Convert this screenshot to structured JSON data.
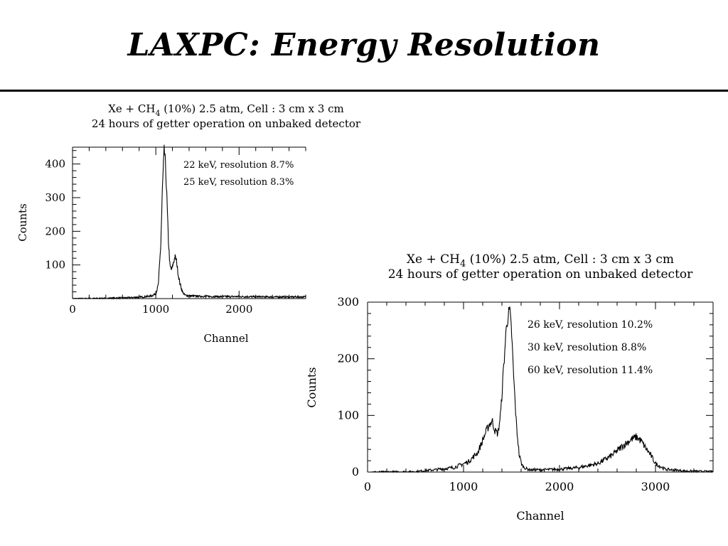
{
  "slide": {
    "title": "LAXPC: Energy  Resolution"
  },
  "chart_data": [
    {
      "type": "line",
      "title_line1": "Xe + CH",
      "title_sub": "4",
      "title_line1_rest": " (10%) 2.5 atm, Cell : 3 cm x 3 cm",
      "title_line2": "24 hours of getter operation on unbaked detector",
      "xlabel": "Channel",
      "ylabel": "Counts",
      "xlim": [
        0,
        2800
      ],
      "ylim": [
        0,
        450
      ],
      "xticks": [
        0,
        1000,
        2000
      ],
      "xtick_labels": [
        "0",
        "1000",
        "2000"
      ],
      "yticks": [
        100,
        200,
        300,
        400
      ],
      "ytick_labels": [
        "100",
        "200",
        "300",
        "400"
      ],
      "annotations": [
        "22 keV, resolution 8.7%",
        "25 keV, resolution 8.3%"
      ],
      "series": [
        {
          "x": [
            0,
            400,
            700,
            850,
            950,
            1000,
            1030,
            1060,
            1080,
            1100,
            1110,
            1130,
            1150,
            1170,
            1190,
            1210,
            1230,
            1250,
            1270,
            1290,
            1320,
            1350,
            1400,
            1500,
            1700,
            2000,
            2400,
            2800
          ],
          "y": [
            0,
            1,
            3,
            5,
            8,
            15,
            40,
            160,
            330,
            440,
            425,
            320,
            180,
            95,
            85,
            105,
            125,
            110,
            70,
            45,
            20,
            10,
            8,
            7,
            6,
            6,
            5,
            5
          ]
        }
      ]
    },
    {
      "type": "line",
      "title_line1": "Xe + CH",
      "title_sub": "4",
      "title_line1_rest": " (10%) 2.5 atm, Cell : 3 cm x 3 cm",
      "title_line2": "24 hours of getter operation on unbaked detector",
      "xlabel": "Channel",
      "ylabel": "Counts",
      "xlim": [
        0,
        3600
      ],
      "ylim": [
        0,
        300
      ],
      "xticks": [
        0,
        1000,
        2000,
        3000
      ],
      "xtick_labels": [
        "0",
        "1000",
        "2000",
        "3000"
      ],
      "yticks": [
        0,
        100,
        200,
        300
      ],
      "ytick_labels": [
        "0",
        "100",
        "200",
        "300"
      ],
      "annotations": [
        "26 keV, resolution 10.2%",
        "30 keV, resolution 8.8%",
        "60 keV, resolution 11.4%"
      ],
      "series": [
        {
          "x": [
            0,
            500,
            700,
            900,
            1050,
            1150,
            1220,
            1270,
            1300,
            1330,
            1360,
            1390,
            1420,
            1450,
            1480,
            1500,
            1520,
            1550,
            1580,
            1610,
            1650,
            1700,
            1800,
            2000,
            2200,
            2400,
            2550,
            2650,
            2750,
            2800,
            2850,
            2900,
            2950,
            3000,
            3100,
            3300,
            3600
          ],
          "y": [
            0,
            1,
            4,
            8,
            18,
            35,
            65,
            85,
            90,
            72,
            68,
            110,
            190,
            265,
            285,
            250,
            175,
            85,
            30,
            12,
            6,
            4,
            4,
            5,
            8,
            15,
            30,
            45,
            58,
            62,
            55,
            42,
            30,
            15,
            5,
            2,
            1
          ]
        }
      ]
    }
  ]
}
